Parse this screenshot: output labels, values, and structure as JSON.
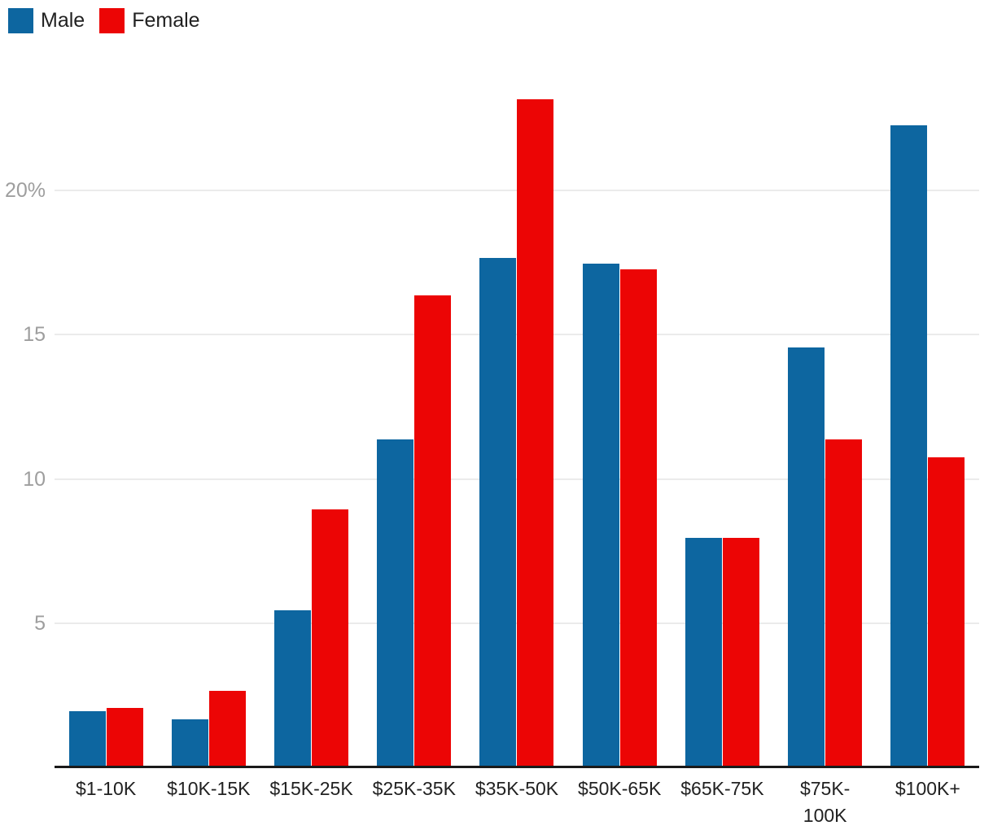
{
  "legend": {
    "items": [
      {
        "label": "Male",
        "color": "#0d66a0"
      },
      {
        "label": "Female",
        "color": "#ec0505"
      }
    ]
  },
  "chart_data": {
    "type": "bar",
    "title": "",
    "xlabel": "",
    "ylabel": "",
    "categories": [
      "$1-10K",
      "$10K-15K",
      "$15K-25K",
      "$25K-35K",
      "$35K-50K",
      "$50K-65K",
      "$65K-75K",
      "$75K-100K",
      "$100K+"
    ],
    "tick_display": [
      "$1-10K",
      "$10K-15K",
      "$15K-25K",
      "$25K-35K",
      "$35K-50K",
      "$50K-65K",
      "$65K-75K",
      "$75K-\n100K",
      "$100K+"
    ],
    "series": [
      {
        "name": "Male",
        "color": "#0d66a0",
        "values": [
          1.9,
          1.6,
          5.4,
          11.3,
          17.6,
          17.4,
          7.9,
          14.5,
          22.2
        ]
      },
      {
        "name": "Female",
        "color": "#ec0505",
        "values": [
          2.0,
          2.6,
          8.9,
          16.3,
          23.1,
          17.2,
          7.9,
          11.3,
          10.7
        ]
      }
    ],
    "ylim": [
      0,
      24
    ],
    "yticks": [
      {
        "value": 5,
        "label": "5"
      },
      {
        "value": 10,
        "label": "10"
      },
      {
        "value": 15,
        "label": "15"
      },
      {
        "value": 20,
        "label": "20%"
      }
    ],
    "grid": true,
    "legend_position": "top-left"
  },
  "style": {
    "grid_color": "#ebebeb",
    "axis_color": "#1a1a1a",
    "ytick_color": "#9e9e9e",
    "xtick_color": "#212121"
  }
}
